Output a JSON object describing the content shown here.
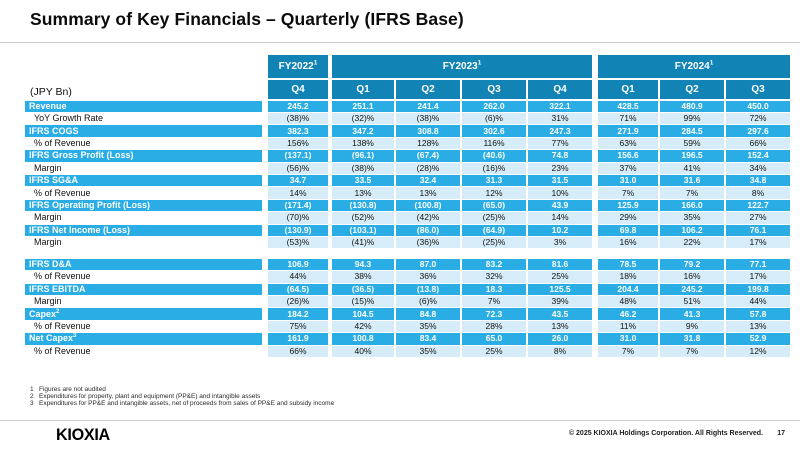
{
  "title": "Summary of Key Financials – Quarterly (IFRS Base)",
  "colors": {
    "header_blue": "#1183b5",
    "primary_cyan": "#29ade4",
    "secondary_light": "#d6edf9",
    "rule_gray": "#c9ced3"
  },
  "table": {
    "unit_label": "(JPY Bn)",
    "year_groups": [
      {
        "label": "FY2022",
        "sup": "1",
        "quarters": [
          "Q4"
        ]
      },
      {
        "label": "FY2023",
        "sup": "1",
        "quarters": [
          "Q1",
          "Q2",
          "Q3",
          "Q4"
        ]
      },
      {
        "label": "FY2024",
        "sup": "1",
        "quarters": [
          "Q1",
          "Q2",
          "Q3"
        ]
      }
    ],
    "rows": [
      {
        "label": "Revenue",
        "type": "primary",
        "values": [
          "245.2",
          "251.1",
          "241.4",
          "262.0",
          "322.1",
          "428.5",
          "480.9",
          "450.0"
        ]
      },
      {
        "label": "YoY Growth Rate",
        "type": "secondary",
        "values": [
          "(38)%",
          "(32)%",
          "(38)%",
          "(6)%",
          "31%",
          "71%",
          "99%",
          "72%"
        ]
      },
      {
        "label": "IFRS COGS",
        "type": "primary",
        "values": [
          "382.3",
          "347.2",
          "308.8",
          "302.6",
          "247.3",
          "271.9",
          "284.5",
          "297.6"
        ]
      },
      {
        "label": "% of Revenue",
        "type": "secondary",
        "values": [
          "156%",
          "138%",
          "128%",
          "116%",
          "77%",
          "63%",
          "59%",
          "66%"
        ]
      },
      {
        "label": "IFRS Gross Profit (Loss)",
        "type": "primary",
        "values": [
          "(137.1)",
          "(96.1)",
          "(67.4)",
          "(40.6)",
          "74.8",
          "156.6",
          "196.5",
          "152.4"
        ]
      },
      {
        "label": "Margin",
        "type": "secondary",
        "values": [
          "(56)%",
          "(38)%",
          "(28)%",
          "(16)%",
          "23%",
          "37%",
          "41%",
          "34%"
        ]
      },
      {
        "label": "IFRS SG&A",
        "type": "primary",
        "values": [
          "34.7",
          "33.5",
          "32.4",
          "31.3",
          "31.5",
          "31.0",
          "31.6",
          "34.8"
        ]
      },
      {
        "label": "% of Revenue",
        "type": "secondary",
        "values": [
          "14%",
          "13%",
          "13%",
          "12%",
          "10%",
          "7%",
          "7%",
          "8%"
        ]
      },
      {
        "label": "IFRS Operating Profit (Loss)",
        "type": "primary",
        "values": [
          "(171.4)",
          "(130.8)",
          "(100.8)",
          "(65.0)",
          "43.9",
          "125.9",
          "166.0",
          "122.7"
        ]
      },
      {
        "label": "Margin",
        "type": "secondary",
        "values": [
          "(70)%",
          "(52)%",
          "(42)%",
          "(25)%",
          "14%",
          "29%",
          "35%",
          "27%"
        ]
      },
      {
        "label": "IFRS Net Income (Loss)",
        "type": "primary",
        "values": [
          "(130.9)",
          "(103.1)",
          "(86.0)",
          "(64.9)",
          "10.2",
          "69.8",
          "106.2",
          "76.1"
        ]
      },
      {
        "label": "Margin",
        "type": "secondary",
        "gap_after": true,
        "values": [
          "(53)%",
          "(41)%",
          "(36)%",
          "(25)%",
          "3%",
          "16%",
          "22%",
          "17%"
        ]
      },
      {
        "label": "IFRS D&A",
        "type": "primary",
        "values": [
          "106.9",
          "94.3",
          "87.0",
          "83.2",
          "81.6",
          "78.5",
          "79.2",
          "77.1"
        ]
      },
      {
        "label": "% of Revenue",
        "type": "secondary",
        "values": [
          "44%",
          "38%",
          "36%",
          "32%",
          "25%",
          "18%",
          "16%",
          "17%"
        ]
      },
      {
        "label": "IFRS EBITDA",
        "type": "primary",
        "values": [
          "(64.5)",
          "(36.5)",
          "(13.8)",
          "18.3",
          "125.5",
          "204.4",
          "245.2",
          "199.8"
        ]
      },
      {
        "label": "Margin",
        "type": "secondary",
        "values": [
          "(26)%",
          "(15)%",
          "(6)%",
          "7%",
          "39%",
          "48%",
          "51%",
          "44%"
        ]
      },
      {
        "label": "Capex",
        "sup": "2",
        "type": "primary",
        "values": [
          "184.2",
          "104.5",
          "84.8",
          "72.3",
          "43.5",
          "46.2",
          "41.3",
          "57.8"
        ]
      },
      {
        "label": "% of Revenue",
        "type": "secondary",
        "values": [
          "75%",
          "42%",
          "35%",
          "28%",
          "13%",
          "11%",
          "9%",
          "13%"
        ]
      },
      {
        "label": "Net Capex",
        "sup": "3",
        "type": "primary",
        "values": [
          "161.9",
          "100.8",
          "83.4",
          "65.0",
          "26.0",
          "31.0",
          "31.8",
          "52.9"
        ]
      },
      {
        "label": "% of Revenue",
        "type": "secondary",
        "values": [
          "66%",
          "40%",
          "35%",
          "25%",
          "8%",
          "7%",
          "7%",
          "12%"
        ]
      }
    ]
  },
  "footnotes": [
    {
      "num": "1",
      "text": "Figures are not audited"
    },
    {
      "num": "2",
      "text": "Expenditures for property, plant and equipment (PP&E) and intangible assets"
    },
    {
      "num": "3",
      "text": "Expenditures for PP&E and intangible assets, net of proceeds from sales of PP&E and subsidy income"
    }
  ],
  "footer": {
    "logo": "KIOXIA",
    "copyright": "© 2025 KIOXIA Holdings Corporation. All Rights Reserved.",
    "page_number": "17"
  }
}
